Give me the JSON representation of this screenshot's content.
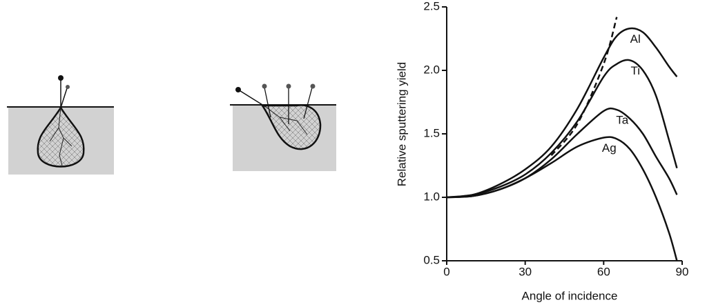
{
  "chart_data": {
    "type": "line",
    "xlabel": "Angle of incidence",
    "ylabel": "Relative sputtering yield",
    "x": [
      0,
      10,
      20,
      30,
      40,
      50,
      60,
      65,
      70,
      75,
      80,
      85,
      88
    ],
    "series": [
      {
        "name": "Al",
        "color": "#111111",
        "values": [
          1.0,
          1.02,
          1.1,
          1.22,
          1.4,
          1.7,
          2.1,
          2.27,
          2.33,
          2.3,
          2.18,
          2.03,
          1.95
        ]
      },
      {
        "name": "Ti",
        "color": "#111111",
        "values": [
          1.0,
          1.02,
          1.08,
          1.18,
          1.35,
          1.6,
          1.95,
          2.05,
          2.08,
          2.0,
          1.8,
          1.45,
          1.23
        ]
      },
      {
        "name": "Ta",
        "color": "#111111",
        "values": [
          1.0,
          1.01,
          1.06,
          1.15,
          1.3,
          1.5,
          1.68,
          1.69,
          1.62,
          1.5,
          1.32,
          1.15,
          1.02
        ]
      },
      {
        "name": "Ag",
        "color": "#111111",
        "values": [
          1.0,
          1.01,
          1.06,
          1.15,
          1.27,
          1.4,
          1.47,
          1.46,
          1.38,
          1.22,
          1.0,
          0.72,
          0.5
        ]
      },
      {
        "color": "#111111",
        "dashed": true,
        "values": [
          null,
          null,
          null,
          null,
          1.33,
          1.58,
          2.05,
          2.42,
          null,
          null,
          null,
          null,
          null
        ]
      }
    ],
    "xlim": [
      0,
      90
    ],
    "xticks": [
      0,
      30,
      60,
      90
    ],
    "ylim": [
      0.5,
      2.5
    ],
    "yticks": [
      0.5,
      {
        "value": 1,
        "label": "1.0"
      },
      1.5,
      {
        "value": 2,
        "label": "2.0"
      },
      2.5
    ]
  }
}
